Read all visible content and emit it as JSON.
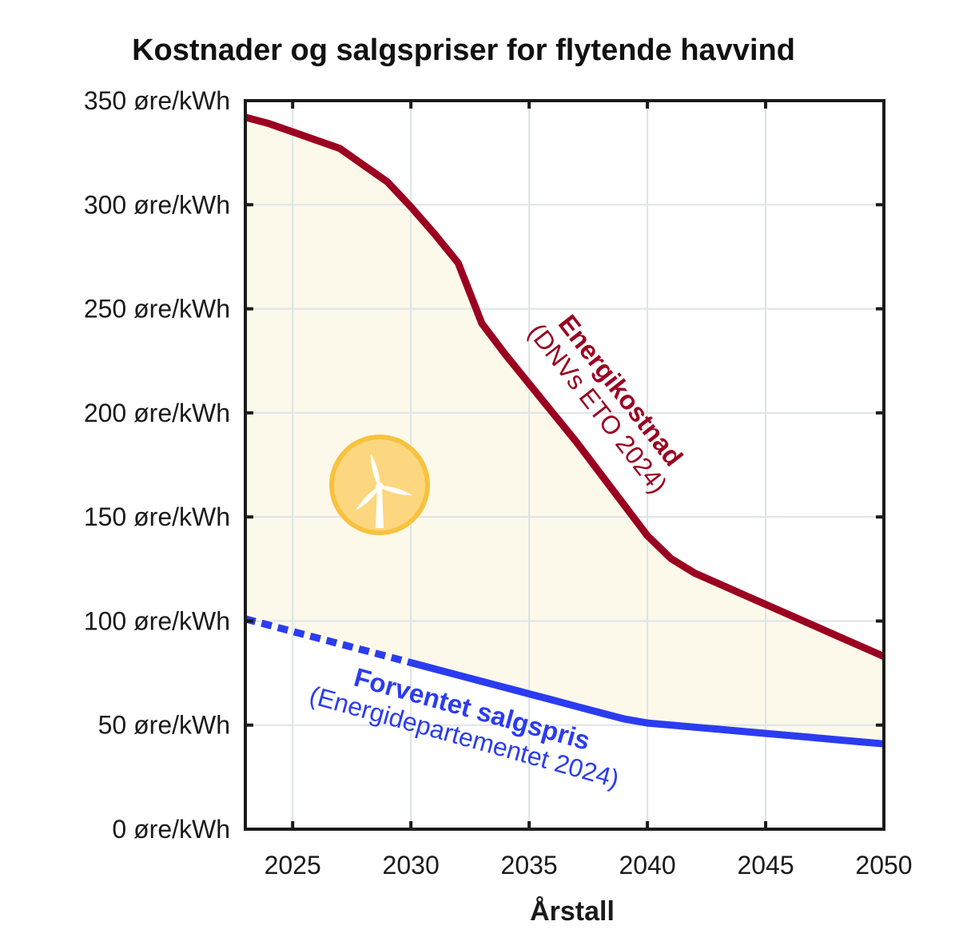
{
  "chart_data": {
    "type": "line",
    "title": "Kostnader og salgspriser for flytende havvind",
    "xlabel": "Årstall",
    "ylabel": "",
    "xlim": [
      2023,
      2050
    ],
    "ylim": [
      0,
      350
    ],
    "xticks": [
      2025,
      2030,
      2035,
      2040,
      2045,
      2050
    ],
    "yticks": [
      0,
      50,
      100,
      150,
      200,
      250,
      300,
      350
    ],
    "y_unit": "øre/kWh",
    "grid": true,
    "colors": {
      "cost": "#9b0020",
      "price": "#2b3cf0",
      "fill": "#fdf9ea",
      "icon": "#fcd77f",
      "icon_ring": "#f8c23f"
    },
    "icon": "wind-turbine-icon",
    "series": [
      {
        "key": "cost",
        "label_bold": "Energikostnad",
        "label": "(DNVs ETO 2024)",
        "style": "solid",
        "x": [
          2023,
          2024,
          2025,
          2026,
          2027,
          2028,
          2029,
          2030,
          2031,
          2032,
          2033,
          2034,
          2035,
          2036,
          2037,
          2038,
          2039,
          2040,
          2041,
          2042,
          2043,
          2044,
          2045,
          2046,
          2047,
          2048,
          2049,
          2050
        ],
        "y": [
          342,
          339,
          335,
          331,
          327,
          319,
          311,
          299,
          286,
          272,
          243,
          228,
          214,
          200,
          186,
          171,
          156,
          141,
          130,
          123,
          118,
          113,
          108,
          103,
          98,
          93,
          88,
          83
        ]
      },
      {
        "key": "price",
        "label_bold": "Forventet salgspris",
        "label": "(Energidepartementet 2024)",
        "segments": [
          {
            "style": "dotted",
            "x": [
              2023,
              2024,
              2025,
              2026,
              2027,
              2028,
              2029,
              2030
            ],
            "y": [
              101,
              98,
              95,
              92,
              89,
              86,
              83,
              80
            ]
          },
          {
            "style": "solid",
            "x": [
              2030,
              2031,
              2032,
              2033,
              2034,
              2035,
              2036,
              2037,
              2038,
              2039,
              2040,
              2041,
              2042,
              2043,
              2044,
              2045,
              2046,
              2047,
              2048,
              2049,
              2050
            ],
            "y": [
              80,
              77,
              74,
              71,
              68,
              65,
              62,
              59,
              56,
              53,
              51,
              50,
              49,
              48,
              47,
              46,
              45,
              44,
              43,
              42,
              41
            ]
          }
        ]
      }
    ]
  }
}
